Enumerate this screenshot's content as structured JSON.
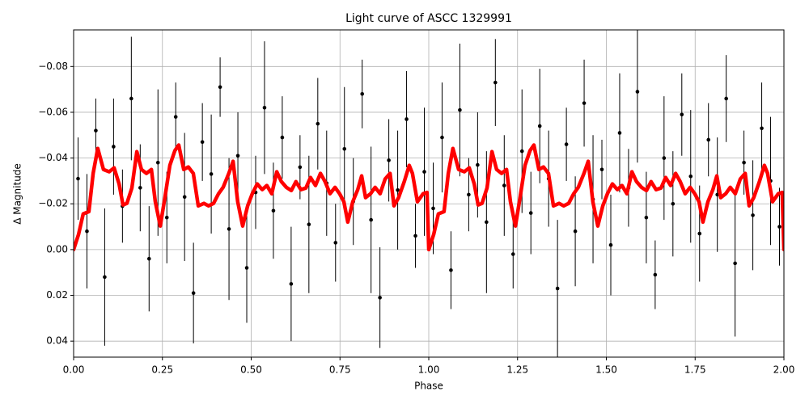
{
  "chart_data": {
    "type": "errorbar-line",
    "title": "Light curve of ASCC 1329991",
    "x_label": "Phase",
    "y_label": "Δ Magnitude",
    "xlim": [
      0,
      2
    ],
    "ylim": [
      -0.096,
      0.047
    ],
    "y_inverted": true,
    "grid": true,
    "xticks": [
      {
        "value": 0,
        "label": "0.00"
      },
      {
        "value": 0.25,
        "label": "0.25"
      },
      {
        "value": 0.5,
        "label": "0.50"
      },
      {
        "value": 0.75,
        "label": "0.75"
      },
      {
        "value": 1,
        "label": "1.00"
      },
      {
        "value": 1.25,
        "label": "1.25"
      },
      {
        "value": 1.5,
        "label": "1.50"
      },
      {
        "value": 1.75,
        "label": "1.75"
      },
      {
        "value": 2,
        "label": "2.00"
      }
    ],
    "yticks": [
      {
        "value": -0.08,
        "label": "−0.08"
      },
      {
        "value": -0.06,
        "label": "−0.06"
      },
      {
        "value": -0.04,
        "label": "−0.04"
      },
      {
        "value": -0.02,
        "label": "−0.02"
      },
      {
        "value": 0,
        "label": "0.00"
      },
      {
        "value": 0.02,
        "label": "0.02"
      },
      {
        "value": 0.04,
        "label": "0.04"
      }
    ],
    "points": {
      "color": "#000000",
      "x": [
        0.0125,
        0.0375,
        0.0625,
        0.0875,
        0.1125,
        0.1375,
        0.1625,
        0.1875,
        0.2125,
        0.2375,
        0.2625,
        0.2875,
        0.3125,
        0.3375,
        0.3625,
        0.3875,
        0.4125,
        0.4375,
        0.4625,
        0.4875,
        0.5125,
        0.5375,
        0.5625,
        0.5875,
        0.6125,
        0.6375,
        0.6625,
        0.6875,
        0.7125,
        0.7375,
        0.7625,
        0.7875,
        0.8125,
        0.8375,
        0.8625,
        0.8875,
        0.9125,
        0.9375,
        0.9625,
        0.9875,
        1.0125,
        1.0375,
        1.0625,
        1.0875,
        1.1125,
        1.1375,
        1.1625,
        1.1875,
        1.2125,
        1.2375,
        1.2625,
        1.2875,
        1.3125,
        1.3375,
        1.3625,
        1.3875,
        1.4125,
        1.4375,
        1.4625,
        1.4875,
        1.5125,
        1.5375,
        1.5625,
        1.5875,
        1.6125,
        1.6375,
        1.6625,
        1.6875,
        1.7125,
        1.7375,
        1.7625,
        1.7875,
        1.8125,
        1.8375,
        1.8625,
        1.8875,
        1.9125,
        1.9375,
        1.9625,
        1.9875
      ],
      "values": [
        -0.031,
        -0.008,
        -0.052,
        0.012,
        -0.045,
        -0.019,
        -0.066,
        -0.027,
        0.004,
        -0.038,
        -0.014,
        -0.058,
        -0.023,
        0.019,
        -0.047,
        -0.033,
        -0.071,
        -0.009,
        -0.041,
        0.008,
        -0.025,
        -0.062,
        -0.017,
        -0.049,
        0.015,
        -0.036,
        -0.011,
        -0.055,
        -0.029,
        -0.003,
        -0.044,
        -0.021,
        -0.068,
        -0.013,
        0.021,
        -0.039,
        -0.026,
        -0.057,
        -0.006,
        -0.034,
        -0.018,
        -0.049,
        0.009,
        -0.061,
        -0.024,
        -0.037,
        -0.012,
        -0.073,
        -0.028,
        0.002,
        -0.043,
        -0.016,
        -0.054,
        -0.031,
        0.017,
        -0.046,
        -0.008,
        -0.064,
        -0.022,
        -0.035,
        -0.002,
        -0.051,
        -0.027,
        -0.069,
        -0.014,
        0.011,
        -0.04,
        -0.02,
        -0.059,
        -0.032,
        -0.007,
        -0.048,
        -0.024,
        -0.066,
        0.006,
        -0.038,
        -0.015,
        -0.053,
        -0.03,
        -0.01
      ],
      "errors": [
        0.018,
        0.025,
        0.014,
        0.03,
        0.021,
        0.016,
        0.027,
        0.019,
        0.023,
        0.032,
        0.02,
        0.015,
        0.028,
        0.022,
        0.017,
        0.026,
        0.013,
        0.031,
        0.019,
        0.024,
        0.016,
        0.029,
        0.021,
        0.018,
        0.025,
        0.014,
        0.03,
        0.02,
        0.023,
        0.017,
        0.027,
        0.019,
        0.015,
        0.032,
        0.022,
        0.018,
        0.026,
        0.021,
        0.014,
        0.028,
        0.02,
        0.024,
        0.017,
        0.029,
        0.016,
        0.023,
        0.031,
        0.019,
        0.022,
        0.015,
        0.027,
        0.018,
        0.025,
        0.021,
        0.03,
        0.016,
        0.024,
        0.019,
        0.028,
        0.013,
        0.022,
        0.026,
        0.017,
        0.031,
        0.02,
        0.015,
        0.027,
        0.023,
        0.018,
        0.029,
        0.021,
        0.016,
        0.025,
        0.019,
        0.032,
        0.014,
        0.024,
        0.02,
        0.028,
        0.017
      ]
    },
    "curve": {
      "color": "#ff0000",
      "x": [
        0.0,
        0.014,
        0.027,
        0.043,
        0.055,
        0.068,
        0.084,
        0.1,
        0.114,
        0.128,
        0.139,
        0.15,
        0.164,
        0.178,
        0.191,
        0.205,
        0.219,
        0.23,
        0.244,
        0.257,
        0.271,
        0.285,
        0.296,
        0.31,
        0.323,
        0.337,
        0.351,
        0.367,
        0.38,
        0.394,
        0.408,
        0.421,
        0.437,
        0.449,
        0.462,
        0.476,
        0.49,
        0.503,
        0.517,
        0.531,
        0.544,
        0.558,
        0.572,
        0.585,
        0.599,
        0.613,
        0.626,
        0.64,
        0.654,
        0.667,
        0.681,
        0.695,
        0.708,
        0.722,
        0.736,
        0.749,
        0.761,
        0.772,
        0.786,
        0.8,
        0.811,
        0.822,
        0.836,
        0.849,
        0.863,
        0.877,
        0.891,
        0.902,
        0.915,
        0.931,
        0.945,
        0.954,
        0.968,
        0.984,
        0.995,
        1.0,
        1.014,
        1.027,
        1.043,
        1.055,
        1.068,
        1.084,
        1.1,
        1.114,
        1.128,
        1.139,
        1.15,
        1.164,
        1.178,
        1.191,
        1.205,
        1.219,
        1.23,
        1.244,
        1.257,
        1.271,
        1.285,
        1.296,
        1.31,
        1.323,
        1.337,
        1.351,
        1.367,
        1.38,
        1.394,
        1.408,
        1.421,
        1.437,
        1.449,
        1.462,
        1.476,
        1.49,
        1.503,
        1.517,
        1.531,
        1.544,
        1.558,
        1.572,
        1.585,
        1.599,
        1.613,
        1.626,
        1.64,
        1.654,
        1.667,
        1.681,
        1.695,
        1.708,
        1.722,
        1.736,
        1.749,
        1.761,
        1.772,
        1.786,
        1.8,
        1.811,
        1.822,
        1.836,
        1.849,
        1.863,
        1.877,
        1.891,
        1.902,
        1.915,
        1.931,
        1.945,
        1.954,
        1.968,
        1.984,
        1.995,
        2.0
      ],
      "values": [
        0.0,
        -0.0067,
        -0.0156,
        -0.0166,
        -0.0333,
        -0.0442,
        -0.035,
        -0.034,
        -0.0357,
        -0.0287,
        -0.0195,
        -0.0202,
        -0.0269,
        -0.0428,
        -0.035,
        -0.0333,
        -0.035,
        -0.0209,
        -0.0103,
        -0.0227,
        -0.0368,
        -0.0432,
        -0.0457,
        -0.035,
        -0.0361,
        -0.0333,
        -0.0191,
        -0.0202,
        -0.0191,
        -0.0202,
        -0.0244,
        -0.0272,
        -0.0333,
        -0.0386,
        -0.0209,
        -0.0103,
        -0.0191,
        -0.0244,
        -0.0287,
        -0.0262,
        -0.028,
        -0.0244,
        -0.034,
        -0.0297,
        -0.0272,
        -0.0258,
        -0.0297,
        -0.0262,
        -0.0269,
        -0.0315,
        -0.028,
        -0.0333,
        -0.0297,
        -0.0244,
        -0.0272,
        -0.0244,
        -0.0209,
        -0.012,
        -0.0209,
        -0.0262,
        -0.0322,
        -0.0227,
        -0.0244,
        -0.0272,
        -0.0244,
        -0.0308,
        -0.0333,
        -0.0191,
        -0.0227,
        -0.0297,
        -0.0368,
        -0.0333,
        -0.0209,
        -0.0244,
        -0.025,
        0.0,
        -0.0067,
        -0.0156,
        -0.0166,
        -0.0333,
        -0.0442,
        -0.035,
        -0.034,
        -0.0357,
        -0.0287,
        -0.0195,
        -0.0202,
        -0.0269,
        -0.0428,
        -0.035,
        -0.0333,
        -0.035,
        -0.0209,
        -0.0103,
        -0.0227,
        -0.0368,
        -0.0432,
        -0.0457,
        -0.035,
        -0.0361,
        -0.0333,
        -0.0191,
        -0.0202,
        -0.0191,
        -0.0202,
        -0.0244,
        -0.0272,
        -0.0333,
        -0.0386,
        -0.0209,
        -0.0103,
        -0.0191,
        -0.0244,
        -0.0287,
        -0.0262,
        -0.028,
        -0.0244,
        -0.034,
        -0.0297,
        -0.0272,
        -0.0258,
        -0.0297,
        -0.0262,
        -0.0269,
        -0.0315,
        -0.028,
        -0.0333,
        -0.0297,
        -0.0244,
        -0.0272,
        -0.0244,
        -0.0209,
        -0.012,
        -0.0209,
        -0.0262,
        -0.0322,
        -0.0227,
        -0.0244,
        -0.0272,
        -0.0244,
        -0.0308,
        -0.0333,
        -0.0191,
        -0.0227,
        -0.0297,
        -0.0368,
        -0.0333,
        -0.0209,
        -0.0244,
        -0.025,
        0.0
      ]
    }
  }
}
